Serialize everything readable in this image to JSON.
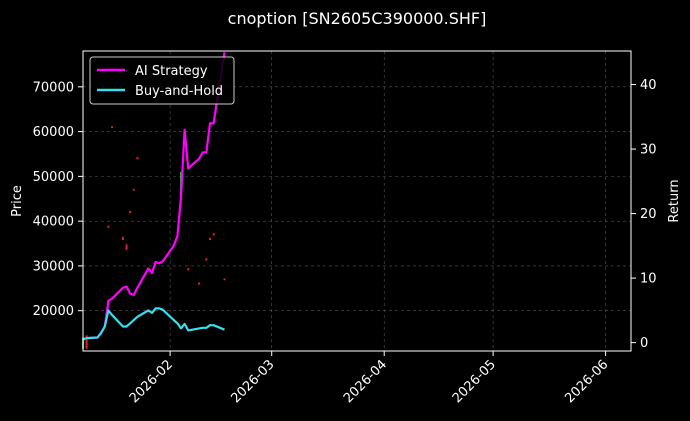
{
  "chart_data": {
    "type": "line",
    "title": "cnoption [SN2605C390000.SHF]",
    "ylabel_left": "Price",
    "ylabel_right": "Return",
    "xlim": [
      "2026-01-08",
      "2026-06-08"
    ],
    "ylim_left": [
      11000,
      78000
    ],
    "ylim_right": [
      -1.3,
      45.2
    ],
    "x_ticks": [
      "2026-02",
      "2026-03",
      "2026-04",
      "2026-05",
      "2026-06"
    ],
    "y_ticks_left": [
      20000,
      30000,
      40000,
      50000,
      60000,
      70000
    ],
    "y_ticks_right": [
      0,
      10,
      20,
      30,
      40
    ],
    "grid": true,
    "legend_position": "top-left",
    "colors": {
      "background": "#000000",
      "ai_strategy": "#ff00ff",
      "buy_and_hold": "#33e0f0",
      "candle_up": "#2ea84a",
      "candle_down": "#e0202a",
      "grid": "#555555",
      "text": "#ffffff"
    },
    "series": [
      {
        "name": "AI Strategy",
        "points": [
          [
            "2026-01-08",
            0.5
          ],
          [
            "2026-01-09",
            0.7
          ],
          [
            "2026-01-12",
            0.8
          ],
          [
            "2026-01-13",
            1.5
          ],
          [
            "2026-01-14",
            2.5
          ],
          [
            "2026-01-15",
            6.5
          ],
          [
            "2026-01-16",
            6.8
          ],
          [
            "2026-01-19",
            8.5
          ],
          [
            "2026-01-20",
            8.7
          ],
          [
            "2026-01-21",
            7.6
          ],
          [
            "2026-01-22",
            7.4
          ],
          [
            "2026-01-23",
            8.5
          ],
          [
            "2026-01-26",
            11.5
          ],
          [
            "2026-01-27",
            10.8
          ],
          [
            "2026-01-28",
            12.5
          ],
          [
            "2026-01-29",
            12.3
          ],
          [
            "2026-01-30",
            12.6
          ],
          [
            "2026-02-02",
            15.0
          ],
          [
            "2026-02-03",
            16.5
          ],
          [
            "2026-02-04",
            22.5
          ],
          [
            "2026-02-05",
            33.0
          ],
          [
            "2026-02-06",
            27.0
          ],
          [
            "2026-02-09",
            28.5
          ],
          [
            "2026-02-10",
            29.5
          ],
          [
            "2026-02-11",
            29.5
          ],
          [
            "2026-02-12",
            34.0
          ],
          [
            "2026-02-13",
            34.0
          ],
          [
            "2026-02-16",
            45.0
          ]
        ]
      },
      {
        "name": "Buy-and-Hold",
        "points": [
          [
            "2026-01-08",
            0.5
          ],
          [
            "2026-01-09",
            0.7
          ],
          [
            "2026-01-12",
            0.8
          ],
          [
            "2026-01-13",
            1.5
          ],
          [
            "2026-01-14",
            2.5
          ],
          [
            "2026-01-15",
            5.0
          ],
          [
            "2026-01-16",
            4.3
          ],
          [
            "2026-01-19",
            2.5
          ],
          [
            "2026-01-20",
            2.5
          ],
          [
            "2026-01-21",
            3.0
          ],
          [
            "2026-01-22",
            3.5
          ],
          [
            "2026-01-23",
            4.0
          ],
          [
            "2026-01-26",
            5.0
          ],
          [
            "2026-01-27",
            4.6
          ],
          [
            "2026-01-28",
            5.3
          ],
          [
            "2026-01-29",
            5.3
          ],
          [
            "2026-01-30",
            5.1
          ],
          [
            "2026-02-02",
            3.5
          ],
          [
            "2026-02-03",
            3.0
          ],
          [
            "2026-02-04",
            2.2
          ],
          [
            "2026-02-05",
            2.9
          ],
          [
            "2026-02-06",
            1.9
          ],
          [
            "2026-02-09",
            2.2
          ],
          [
            "2026-02-10",
            2.3
          ],
          [
            "2026-02-11",
            2.3
          ],
          [
            "2026-02-12",
            2.7
          ],
          [
            "2026-02-13",
            2.7
          ],
          [
            "2026-02-16",
            2.0
          ]
        ]
      }
    ],
    "candles": [
      {
        "x": "2026-01-08",
        "low": 11500,
        "high": 14000,
        "dir": "up"
      },
      {
        "x": "2026-01-09",
        "low": 11500,
        "high": 14500,
        "dir": "down"
      },
      {
        "x": "2026-01-15",
        "low": 38500,
        "high": 39000,
        "dir": "down"
      },
      {
        "x": "2026-01-16",
        "low": 60800,
        "high": 61200,
        "dir": "down"
      },
      {
        "x": "2026-01-19",
        "low": 35800,
        "high": 36500,
        "dir": "down"
      },
      {
        "x": "2026-01-20",
        "low": 33600,
        "high": 34800,
        "dir": "down"
      },
      {
        "x": "2026-01-21",
        "low": 41800,
        "high": 42300,
        "dir": "down"
      },
      {
        "x": "2026-01-22",
        "low": 46800,
        "high": 47200,
        "dir": "down"
      },
      {
        "x": "2026-01-23",
        "low": 53800,
        "high": 54300,
        "dir": "down"
      },
      {
        "x": "2026-02-04",
        "low": 45500,
        "high": 51000,
        "dir": "up"
      },
      {
        "x": "2026-02-06",
        "low": 29000,
        "high": 29500,
        "dir": "down"
      },
      {
        "x": "2026-02-09",
        "low": 25800,
        "high": 26300,
        "dir": "down"
      },
      {
        "x": "2026-02-11",
        "low": 31200,
        "high": 31700,
        "dir": "down"
      },
      {
        "x": "2026-02-12",
        "low": 35800,
        "high": 36300,
        "dir": "down"
      },
      {
        "x": "2026-02-13",
        "low": 36800,
        "high": 37300,
        "dir": "down"
      },
      {
        "x": "2026-02-16",
        "low": 26800,
        "high": 27200,
        "dir": "down"
      }
    ]
  }
}
